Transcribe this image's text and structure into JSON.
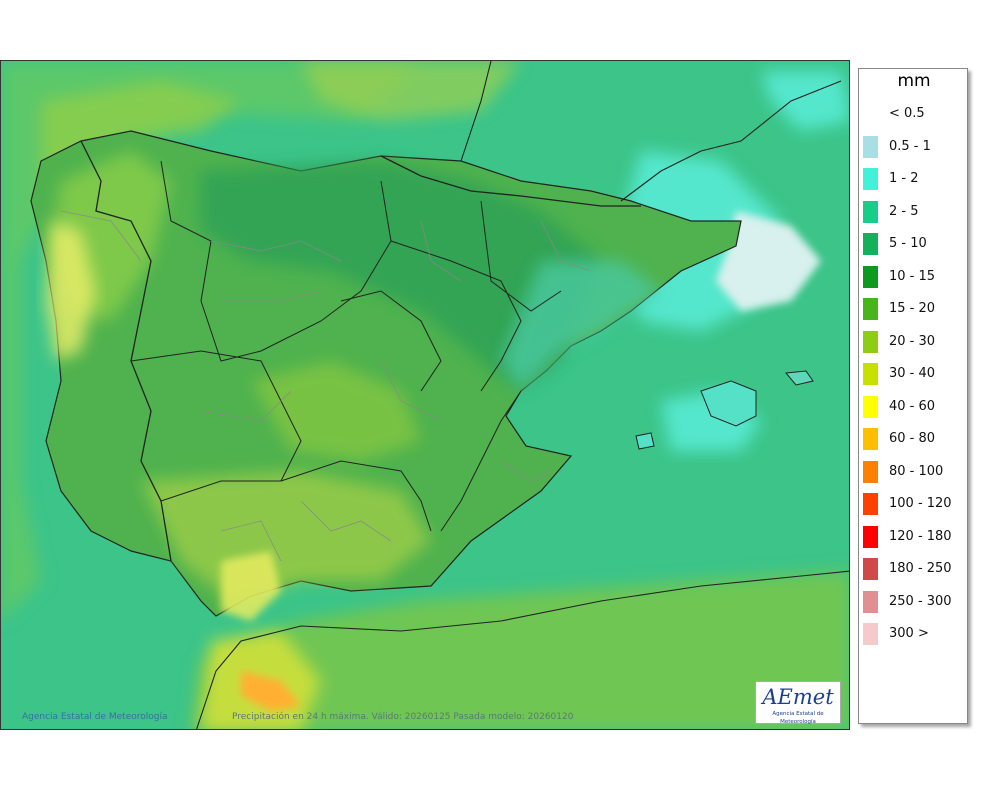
{
  "legend": {
    "unit": "mm",
    "items": [
      {
        "label": "< 0.5",
        "color": "#ffffff"
      },
      {
        "label": "0.5 - 1",
        "color": "#a9dfe3"
      },
      {
        "label": "1 - 2",
        "color": "#41f2d8"
      },
      {
        "label": "2 - 5",
        "color": "#18cc8a"
      },
      {
        "label": "5 - 10",
        "color": "#15b05a"
      },
      {
        "label": "10 - 15",
        "color": "#0f9a1f"
      },
      {
        "label": "15 - 20",
        "color": "#4ab41c"
      },
      {
        "label": "20 - 30",
        "color": "#8fcc14"
      },
      {
        "label": "30 - 40",
        "color": "#c8e000"
      },
      {
        "label": "40 - 60",
        "color": "#ffff00"
      },
      {
        "label": "60 - 80",
        "color": "#ffbf00"
      },
      {
        "label": "80 - 100",
        "color": "#ff8000"
      },
      {
        "label": "100 - 120",
        "color": "#ff4000"
      },
      {
        "label": "120 - 180",
        "color": "#ff0000"
      },
      {
        "label": "180 - 250",
        "color": "#d04848"
      },
      {
        "label": "250 - 300",
        "color": "#e09090"
      },
      {
        "label": "300 >",
        "color": "#f5caca"
      }
    ]
  },
  "credit": "Agencia Estatal de Meteorología",
  "caption": "Precipitación en 24 h máxima. Válido: 20260125 Pasada modelo: 20260120",
  "logo": {
    "wordmark": "AEmet",
    "subtitle": "Agencia Estatal de Meteorología"
  },
  "colors": {
    "sea": "#3cc489",
    "border_country": "#222222",
    "border_province": "#888888"
  }
}
